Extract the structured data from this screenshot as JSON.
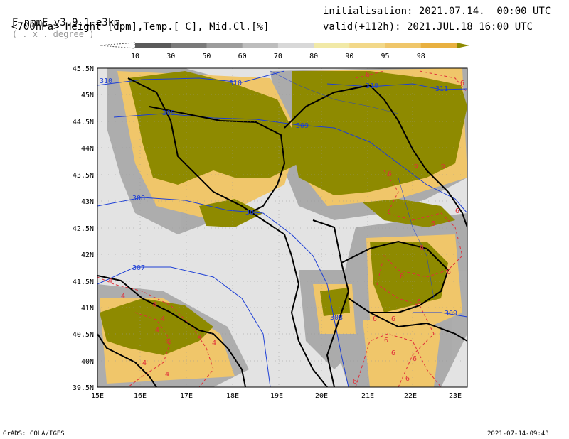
{
  "header": {
    "model": "F-nmmE_v3.9.1-e3km",
    "units_note": "( . x . degree )",
    "fields": "<700hPa> Height [dpm],Temp.[ C], Mid.Cl.[%]",
    "init": "initialisation: 2021.07.14.  00:00 UTC",
    "valid": "valid(+112h): 2021.JUL.18 16:00 UTC"
  },
  "legend": {
    "labels": [
      "10",
      "30",
      "50",
      "60",
      "70",
      "80",
      "90",
      "95",
      "98"
    ],
    "colors": [
      "#5a5a5a",
      "#7a7a7a",
      "#9c9c9c",
      "#bdbdbd",
      "#d8d8d8",
      "#f1e9a7",
      "#f2d889",
      "#efc66a",
      "#e8b040",
      "#8e8a00"
    ]
  },
  "axes": {
    "lat_labels": [
      "45.5N",
      "45N",
      "44.5N",
      "44N",
      "43.5N",
      "43N",
      "42.5N",
      "42N",
      "41.5N",
      "41N",
      "40.5N",
      "40N",
      "39.5N"
    ],
    "lon_labels": [
      "15E",
      "16E",
      "17E",
      "18E",
      "19E",
      "20E",
      "21E",
      "22E",
      "23E"
    ]
  },
  "contours": {
    "height_labels": [
      "310",
      "310",
      "310",
      "311",
      "309",
      "309",
      "308",
      "308",
      "307",
      "308",
      "309"
    ],
    "temp_labels": [
      "6",
      "6",
      "6",
      "6",
      "6",
      "6",
      "6",
      "6",
      "6",
      "6",
      "6",
      "6",
      "6",
      "6",
      "6",
      "6",
      "6",
      "6",
      "4",
      "4",
      "4",
      "4",
      "4",
      "4",
      "4",
      "4",
      "4",
      "4"
    ]
  },
  "colors": {
    "background": "#e3e3e3",
    "cloud_high": "#8e8a00",
    "height_contour": "#1d3fd6",
    "temp_contour": "#e0303a",
    "coastline": "#000000"
  },
  "footer": {
    "left": "GrADS: COLA/IGES",
    "right": "2021-07-14-09:43"
  }
}
